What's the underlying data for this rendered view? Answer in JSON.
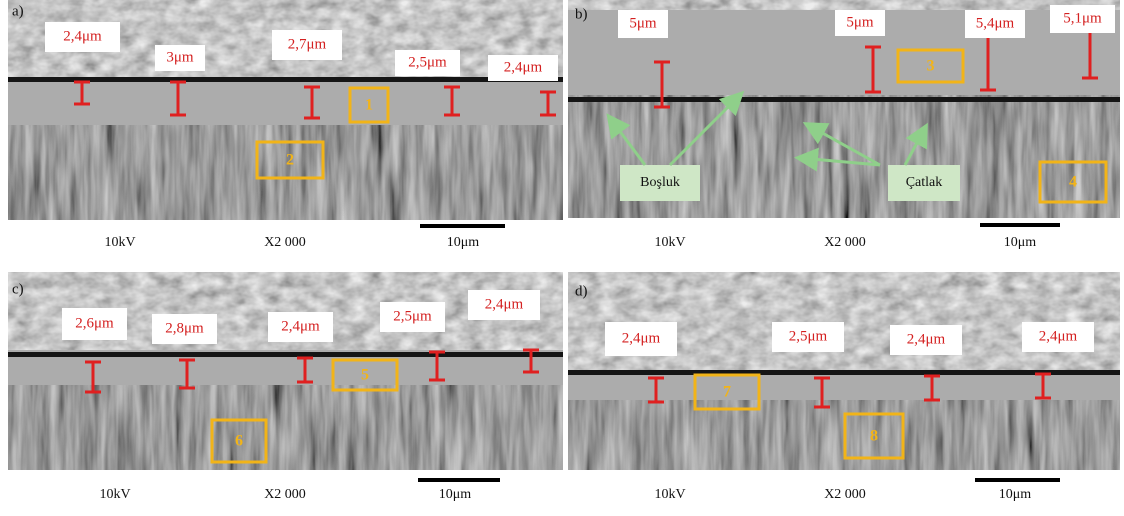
{
  "panels": [
    {
      "label": "a)",
      "thickness_labels": [
        "2,4μm",
        "3μm",
        "2,7μm",
        "2,5μm",
        "2,4μm"
      ],
      "regions": [
        "1",
        "2"
      ],
      "voltage": "10kV",
      "magnification": "X2 000",
      "scale_bar": "10μm"
    },
    {
      "label": "b)",
      "thickness_labels": [
        "5μm",
        "5μm",
        "5,4μm",
        "5,1μm"
      ],
      "regions": [
        "3",
        "4"
      ],
      "callouts": [
        "Boşluk",
        "Çatlak"
      ],
      "voltage": "10kV",
      "magnification": "X2 000",
      "scale_bar": "10μm"
    },
    {
      "label": "c)",
      "thickness_labels": [
        "2,6μm",
        "2,8μm",
        "2,4μm",
        "2,5μm",
        "2,4μm"
      ],
      "regions": [
        "5",
        "6"
      ],
      "voltage": "10kV",
      "magnification": "X2 000",
      "scale_bar": "10μm"
    },
    {
      "label": "d)",
      "thickness_labels": [
        "2,4μm",
        "2,5μm",
        "2,4μm",
        "2,4μm"
      ],
      "regions": [
        "7",
        "8"
      ],
      "voltage": "10kV",
      "magnification": "X2 000",
      "scale_bar": "10μm"
    }
  ]
}
